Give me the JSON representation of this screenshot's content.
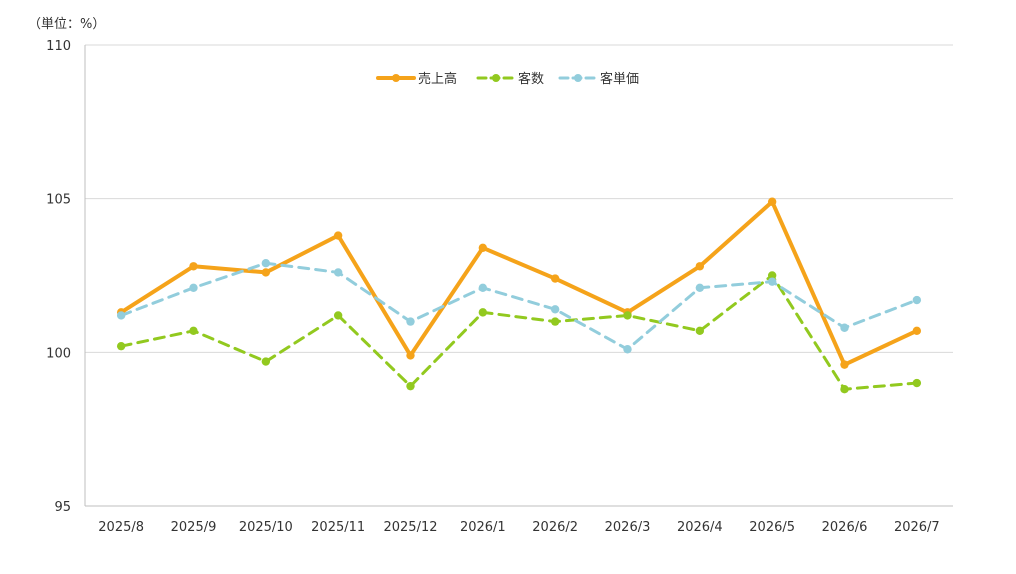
{
  "chart_data": {
    "type": "line",
    "title": "",
    "unit_label": "（単位：%）",
    "xlabel": "",
    "ylabel": "",
    "ylim": [
      95,
      110
    ],
    "y_ticks": [
      95,
      100,
      105,
      110
    ],
    "grid": true,
    "legend_position": "top-center",
    "categories": [
      "2025/8",
      "2025/9",
      "2025/10",
      "2025/11",
      "2025/12",
      "2026/1",
      "2026/2",
      "2026/3",
      "2026/4",
      "2026/5",
      "2026/6",
      "2026/7"
    ],
    "series": [
      {
        "name": "売上高",
        "style": "solid",
        "color": "#F5A31A",
        "values": [
          101.3,
          102.8,
          102.6,
          103.8,
          99.9,
          103.4,
          102.4,
          101.3,
          102.8,
          104.9,
          99.6,
          100.7
        ]
      },
      {
        "name": "客数",
        "style": "dashed",
        "color": "#92C91F",
        "values": [
          100.2,
          100.7,
          99.7,
          101.2,
          98.9,
          101.3,
          101.0,
          101.2,
          100.7,
          102.5,
          98.8,
          99.0
        ]
      },
      {
        "name": "客単価",
        "style": "dashed",
        "color": "#92CDDC",
        "values": [
          101.2,
          102.1,
          102.9,
          102.6,
          101.0,
          102.1,
          101.4,
          100.1,
          102.1,
          102.3,
          100.8,
          101.7
        ]
      }
    ]
  }
}
